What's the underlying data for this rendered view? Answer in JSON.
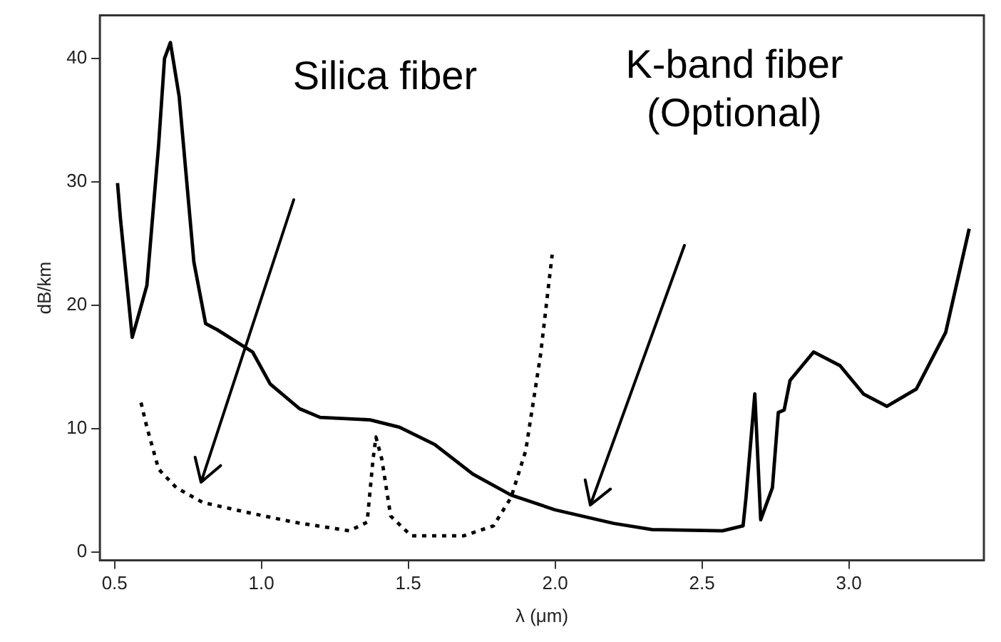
{
  "chart_data": {
    "type": "line",
    "xlabel": "λ (μm)",
    "ylabel": "dB/km",
    "xlim": [
      0.45,
      3.46
    ],
    "ylim": [
      -0.7,
      43.5
    ],
    "xticks": [
      0.5,
      {
        "value": 1,
        "label": "1.0"
      },
      1.5,
      {
        "value": 2,
        "label": "2.0"
      },
      2.5,
      {
        "value": 3,
        "label": "3.0"
      }
    ],
    "yticks": [
      0,
      10,
      20,
      30,
      40
    ],
    "grid": false,
    "legend": false,
    "marker": "none",
    "series": [
      {
        "color": "#000000",
        "line_style": "solid",
        "x": [
          0.51,
          0.52,
          0.56,
          0.57,
          0.61,
          0.65,
          0.67,
          0.69,
          0.72,
          0.77,
          0.81,
          0.85,
          0.97,
          1.03,
          1.13,
          1.2,
          1.37,
          1.47,
          1.59,
          1.72,
          1.85,
          2.0,
          2.2,
          2.33,
          2.57,
          2.64,
          2.65,
          2.68,
          2.7,
          2.74,
          2.76,
          2.78,
          2.8,
          2.88,
          2.97,
          3.05,
          3.13,
          3.23,
          3.33,
          3.41
        ],
        "values": [
          29.9,
          27,
          17.4,
          18.2,
          21.6,
          33,
          40,
          41.3,
          36.9,
          23.5,
          18.5,
          18,
          16.2,
          13.6,
          11.6,
          10.9,
          10.7,
          10.1,
          8.7,
          6.3,
          4.6,
          3.4,
          2.3,
          1.8,
          1.7,
          2.1,
          4.4,
          12.8,
          2.6,
          5.2,
          11.3,
          11.5,
          13.9,
          16.2,
          15.1,
          12.8,
          11.8,
          13.2,
          17.8,
          26.2
        ]
      },
      {
        "color": "#000000",
        "line_style": "dotted",
        "x": [
          0.59,
          0.61,
          0.65,
          0.71,
          0.8,
          0.95,
          1.11,
          1.3,
          1.36,
          1.38,
          1.39,
          1.41,
          1.44,
          1.51,
          1.69,
          1.79,
          1.85,
          1.9,
          1.95,
          1.99
        ],
        "values": [
          12.1,
          10.1,
          6.7,
          5.2,
          4.0,
          3.2,
          2.4,
          1.7,
          2.4,
          7.5,
          9.3,
          7.5,
          2.9,
          1.3,
          1.3,
          2.1,
          4.4,
          8.2,
          15.9,
          24.1
        ]
      }
    ],
    "annotations": [
      "Silica fiber",
      "K-band fiber\n(Optional)"
    ]
  }
}
